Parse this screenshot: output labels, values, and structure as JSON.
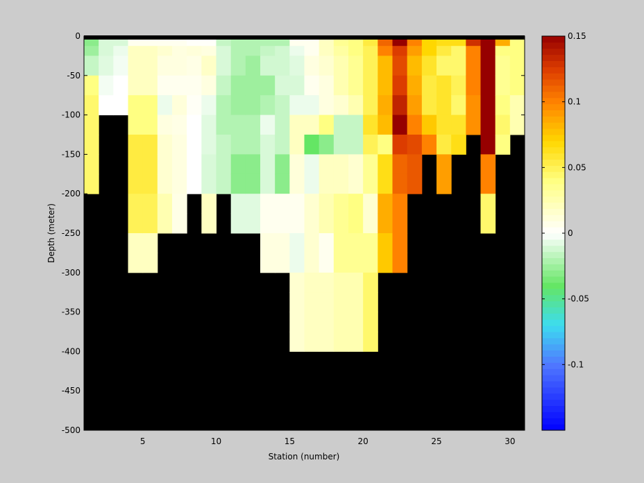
{
  "chart_data": {
    "type": "heatmap",
    "title": "",
    "xlabel": "Station (number)",
    "ylabel": "Depth (meter)",
    "x_range": [
      1,
      31
    ],
    "y_range": [
      -500,
      0
    ],
    "x_ticks": [
      5,
      10,
      15,
      20,
      25,
      30
    ],
    "y_ticks": [
      0,
      -50,
      -100,
      -150,
      -200,
      -250,
      -300,
      -350,
      -400,
      -450,
      -500
    ],
    "color_range": [
      -0.15,
      0.15
    ],
    "colorbar_ticks": [
      0.15,
      0.1,
      0.05,
      0,
      -0.05,
      -0.1
    ],
    "colorbar_tick_labels": [
      "0.15",
      "0.1",
      "0.05",
      "0",
      "-0.05",
      "-0.1"
    ],
    "no_data_color": "#000000",
    "surface_line_color": "#000000",
    "cell_depth_bottoms": [
      -12.5,
      -25,
      -50,
      -75,
      -100,
      -125,
      -150,
      -175,
      -200,
      -225,
      -250,
      -275,
      -300,
      -325,
      -350,
      -375,
      -400
    ],
    "stations": [
      {
        "station": 1,
        "values": [
          -0.03,
          -0.025,
          -0.015,
          0.04,
          0.045,
          0.045,
          0.045,
          0.045,
          0.045
        ]
      },
      {
        "station": 2,
        "values": [
          -0.01,
          -0.01,
          -0.008,
          -0.003,
          0.0
        ]
      },
      {
        "station": 3,
        "values": [
          -0.01,
          -0.005,
          -0.003,
          0.0,
          0.0
        ]
      },
      {
        "station": 4,
        "values": [
          0.005,
          0.02,
          0.02,
          0.02,
          0.04,
          0.04,
          0.055,
          0.055,
          0.055,
          0.05,
          0.05,
          0.02,
          0.02
        ]
      },
      {
        "station": 5,
        "values": [
          0.005,
          0.02,
          0.02,
          0.02,
          0.04,
          0.04,
          0.055,
          0.055,
          0.055,
          0.05,
          0.05,
          0.02,
          0.02
        ]
      },
      {
        "station": 6,
        "values": [
          0.005,
          0.015,
          0.01,
          0.005,
          -0.005,
          0.01,
          0.015,
          0.015,
          0.015,
          0.025,
          0.025
        ]
      },
      {
        "station": 7,
        "values": [
          0.005,
          0.01,
          0.01,
          0.005,
          0.012,
          0.008,
          0.01,
          0.01,
          0.01,
          0.008,
          0.008
        ]
      },
      {
        "station": 8,
        "values": [
          0.002,
          0.012,
          0.008,
          0.005,
          0.003,
          0.0,
          0.0,
          0.0,
          0.0
        ]
      },
      {
        "station": 9,
        "values": [
          0.002,
          0.01,
          0.018,
          0.01,
          -0.005,
          -0.008,
          -0.008,
          -0.01,
          -0.01,
          0.02,
          0.02
        ]
      },
      {
        "station": 10,
        "values": [
          -0.015,
          -0.01,
          -0.01,
          -0.015,
          -0.02,
          -0.02,
          -0.015,
          -0.015,
          -0.015
        ]
      },
      {
        "station": 11,
        "values": [
          -0.02,
          -0.02,
          -0.02,
          -0.025,
          -0.025,
          -0.02,
          -0.02,
          -0.03,
          -0.03,
          -0.008,
          -0.008
        ]
      },
      {
        "station": 12,
        "values": [
          -0.02,
          -0.02,
          -0.025,
          -0.025,
          -0.025,
          -0.02,
          -0.02,
          -0.03,
          -0.03,
          -0.008,
          -0.008
        ]
      },
      {
        "station": 13,
        "values": [
          -0.02,
          -0.015,
          -0.012,
          -0.025,
          -0.02,
          -0.005,
          -0.01,
          -0.01,
          -0.01,
          0.005,
          0.005,
          0.01,
          0.01
        ]
      },
      {
        "station": 14,
        "values": [
          -0.02,
          -0.012,
          -0.012,
          -0.01,
          -0.015,
          -0.015,
          -0.015,
          -0.03,
          -0.03,
          0.005,
          0.005,
          0.01,
          0.01
        ]
      },
      {
        "station": 15,
        "values": [
          0.005,
          -0.005,
          -0.008,
          -0.01,
          -0.005,
          0.02,
          0.02,
          0.012,
          0.012,
          0.005,
          0.005,
          -0.005,
          -0.005,
          0.015,
          0.015,
          0.015,
          0.015
        ]
      },
      {
        "station": 16,
        "values": [
          0.005,
          0.005,
          0.01,
          0.005,
          -0.005,
          0.02,
          -0.04,
          -0.005,
          -0.005,
          0.015,
          0.015,
          0.015,
          0.015,
          0.02,
          0.02,
          0.02,
          0.02
        ]
      },
      {
        "station": 17,
        "values": [
          0.02,
          0.02,
          0.015,
          0.01,
          0.01,
          0.04,
          -0.03,
          0.02,
          0.02,
          0.025,
          0.025,
          0.005,
          0.005,
          0.02,
          0.02,
          0.02,
          0.02
        ]
      },
      {
        "station": 18,
        "values": [
          0.035,
          0.03,
          0.025,
          0.025,
          0.015,
          -0.015,
          -0.015,
          0.02,
          0.02,
          0.035,
          0.035,
          0.035,
          0.035,
          0.025,
          0.025,
          0.025,
          0.025
        ]
      },
      {
        "station": 19,
        "values": [
          0.04,
          0.04,
          0.035,
          0.035,
          0.025,
          -0.015,
          -0.015,
          0.015,
          0.015,
          0.04,
          0.04,
          0.035,
          0.035,
          0.025,
          0.025,
          0.025,
          0.025
        ]
      },
      {
        "station": 20,
        "values": [
          0.055,
          0.05,
          0.05,
          0.05,
          0.05,
          0.06,
          0.05,
          0.035,
          0.035,
          0.015,
          0.015,
          0.035,
          0.035,
          0.045,
          0.045,
          0.045,
          0.045
        ]
      },
      {
        "station": 21,
        "values": [
          0.11,
          0.1,
          0.08,
          0.08,
          0.085,
          0.08,
          0.04,
          0.065,
          0.065,
          0.085,
          0.085,
          0.075,
          0.075
        ]
      },
      {
        "station": 22,
        "values": [
          0.15,
          0.125,
          0.12,
          0.125,
          0.135,
          0.15,
          0.125,
          0.11,
          0.11,
          0.1,
          0.1,
          0.1,
          0.1
        ]
      },
      {
        "station": 23,
        "values": [
          0.1,
          0.09,
          0.08,
          0.085,
          0.09,
          0.1,
          0.12,
          0.115,
          0.115
        ]
      },
      {
        "station": 24,
        "values": [
          0.07,
          0.07,
          0.06,
          0.055,
          0.055,
          0.075,
          0.1
        ]
      },
      {
        "station": 25,
        "values": [
          0.065,
          0.055,
          0.045,
          0.06,
          0.06,
          0.06,
          0.055,
          0.09,
          0.09
        ]
      },
      {
        "station": 26,
        "values": [
          0.065,
          0.045,
          0.045,
          0.05,
          0.045,
          0.06,
          0.065
        ]
      },
      {
        "station": 27,
        "values": [
          0.13,
          0.1,
          0.1,
          0.1,
          0.095,
          0.095
        ]
      },
      {
        "station": 28,
        "values": [
          0.15,
          0.15,
          0.15,
          0.15,
          0.15,
          0.15,
          0.15,
          0.1,
          0.1,
          0.045,
          0.045
        ]
      },
      {
        "station": 29,
        "values": [
          0.085,
          0.04,
          0.035,
          0.035,
          0.04,
          0.045,
          0.04
        ]
      },
      {
        "station": 30,
        "values": [
          0.04,
          0.04,
          0.04,
          0.04,
          0.025,
          0.025
        ]
      }
    ]
  }
}
